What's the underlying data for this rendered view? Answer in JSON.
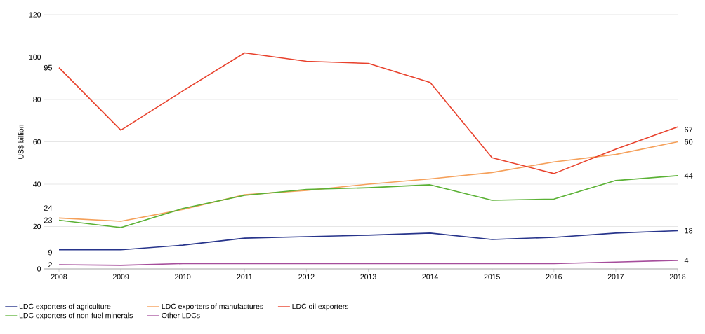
{
  "chart_data": {
    "type": "line",
    "ylabel": "US$ billion",
    "categories": [
      "2008",
      "2009",
      "2010",
      "2011",
      "2012",
      "2013",
      "2014",
      "2015",
      "2016",
      "2017",
      "2018"
    ],
    "ylim": [
      0,
      120
    ],
    "yticks": [
      0,
      20,
      40,
      60,
      80,
      100,
      120
    ],
    "grid": "y",
    "legend": "bottom",
    "marker": "none",
    "line_style": "solid",
    "series": [
      {
        "name": "LDC exporters of agriculture",
        "color": "#27348b",
        "values": [
          9,
          9,
          11.2,
          14.5,
          15.2,
          15.9,
          16.9,
          13.9,
          14.9,
          16.9,
          18
        ],
        "value_labels": [
          "9",
          null,
          null,
          null,
          null,
          null,
          null,
          null,
          null,
          null,
          "18"
        ]
      },
      {
        "name": "LDC exporters of manufactures",
        "color": "#f5a05a",
        "values": [
          24,
          22.5,
          28,
          35,
          37,
          40,
          42.5,
          45.5,
          50.5,
          54,
          60
        ],
        "value_labels": [
          "24",
          null,
          null,
          null,
          null,
          null,
          null,
          null,
          null,
          null,
          "60"
        ]
      },
      {
        "name": "LDC oil exporters",
        "color": "#e8412c",
        "values": [
          95,
          65.5,
          84,
          102,
          98,
          97,
          88,
          52.5,
          45,
          56.5,
          67
        ],
        "value_labels": [
          "95",
          null,
          null,
          null,
          null,
          null,
          null,
          null,
          null,
          null,
          "67"
        ]
      },
      {
        "name": "LDC exporters of non-fuel minerals",
        "color": "#5ab134",
        "values": [
          23,
          19.5,
          28.5,
          34.7,
          37.5,
          38.3,
          39.7,
          32.4,
          33,
          41.7,
          44
        ],
        "value_labels": [
          "23",
          null,
          null,
          null,
          null,
          null,
          null,
          null,
          null,
          null,
          "44"
        ]
      },
      {
        "name": "Other LDCs",
        "color": "#a54d9b",
        "values": [
          2,
          1.7,
          2.5,
          2.5,
          2.5,
          2.5,
          2.5,
          2.5,
          2.5,
          3.2,
          4
        ],
        "value_labels": [
          "2",
          null,
          null,
          null,
          null,
          null,
          null,
          null,
          null,
          null,
          "4"
        ]
      }
    ]
  }
}
